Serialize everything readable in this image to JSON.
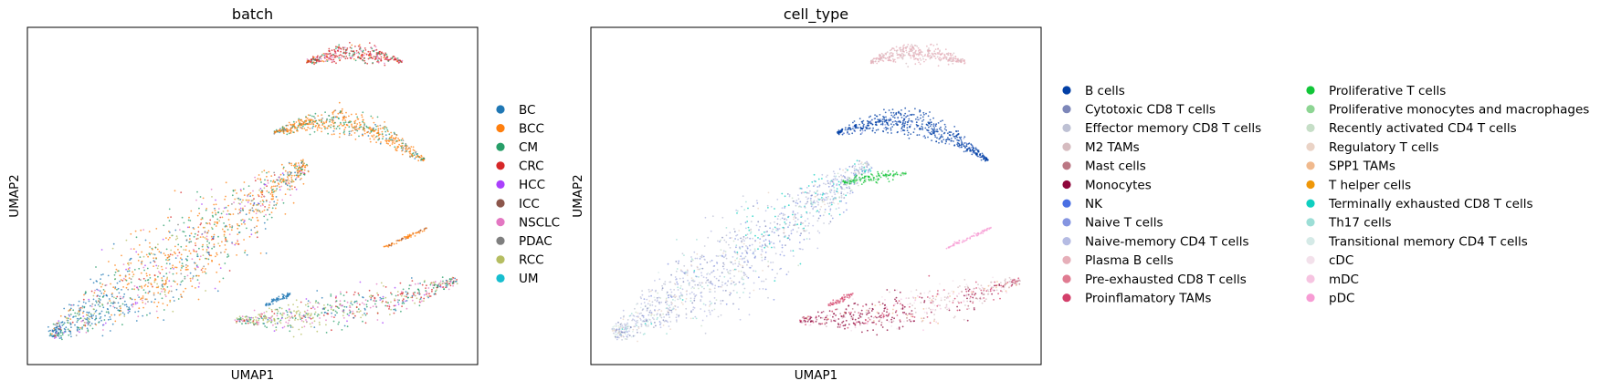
{
  "chart_data": [
    {
      "type": "scatter",
      "title": "batch",
      "xlabel": "UMAP1",
      "ylabel": "UMAP2",
      "grid": false,
      "legend_position": "right",
      "legend": [
        {
          "label": "BC",
          "color": "#1f77b4"
        },
        {
          "label": "BCC",
          "color": "#ff7f0e"
        },
        {
          "label": "CM",
          "color": "#279e68"
        },
        {
          "label": "CRC",
          "color": "#d62728"
        },
        {
          "label": "HCC",
          "color": "#aa40fc"
        },
        {
          "label": "ICC",
          "color": "#8c564b"
        },
        {
          "label": "NSCLC",
          "color": "#e377c2"
        },
        {
          "label": "PDAC",
          "color": "#7f7f7f"
        },
        {
          "label": "RCC",
          "color": "#b5bd61"
        },
        {
          "label": "UM",
          "color": "#17becf"
        }
      ]
    },
    {
      "type": "scatter",
      "title": "cell_type",
      "xlabel": "UMAP1",
      "ylabel": "UMAP2",
      "grid": false,
      "legend_position": "right",
      "legend": [
        {
          "label": "B cells",
          "color": "#023fa5"
        },
        {
          "label": "Cytotoxic CD8 T cells",
          "color": "#7d87b9"
        },
        {
          "label": "Effector memory CD8 T cells",
          "color": "#bec1d4"
        },
        {
          "label": "M2 TAMs",
          "color": "#d6bcc0"
        },
        {
          "label": "Mast cells",
          "color": "#bb7784"
        },
        {
          "label": "Monocytes",
          "color": "#8e063b"
        },
        {
          "label": "NK",
          "color": "#4a6fe3"
        },
        {
          "label": "Naive T cells",
          "color": "#8595e1"
        },
        {
          "label": "Naive-memory CD4 T cells",
          "color": "#b5bbe3"
        },
        {
          "label": "Plasma B cells",
          "color": "#e6afb9"
        },
        {
          "label": "Pre-exhausted CD8 T cells",
          "color": "#e07b91"
        },
        {
          "label": "Proinflamatory TAMs",
          "color": "#d33f6a"
        },
        {
          "label": "Proliferative T cells",
          "color": "#11c638"
        },
        {
          "label": "Proliferative monocytes and macrophages",
          "color": "#8dd593"
        },
        {
          "label": "Recently activated CD4 T cells",
          "color": "#c6dec7"
        },
        {
          "label": "Regulatory T cells",
          "color": "#ead3c6"
        },
        {
          "label": "SPP1 TAMs",
          "color": "#f0b98d"
        },
        {
          "label": "T helper cells",
          "color": "#ef9708"
        },
        {
          "label": "Terminally exhausted CD8 T cells",
          "color": "#0fcfc0"
        },
        {
          "label": "Th17 cells",
          "color": "#9cded6"
        },
        {
          "label": "Transitional memory CD4 T cells",
          "color": "#d5eae7"
        },
        {
          "label": "cDC",
          "color": "#f3e1eb"
        },
        {
          "label": "mDC",
          "color": "#f6c4e1"
        },
        {
          "label": "pDC",
          "color": "#f79cd4"
        }
      ]
    }
  ]
}
